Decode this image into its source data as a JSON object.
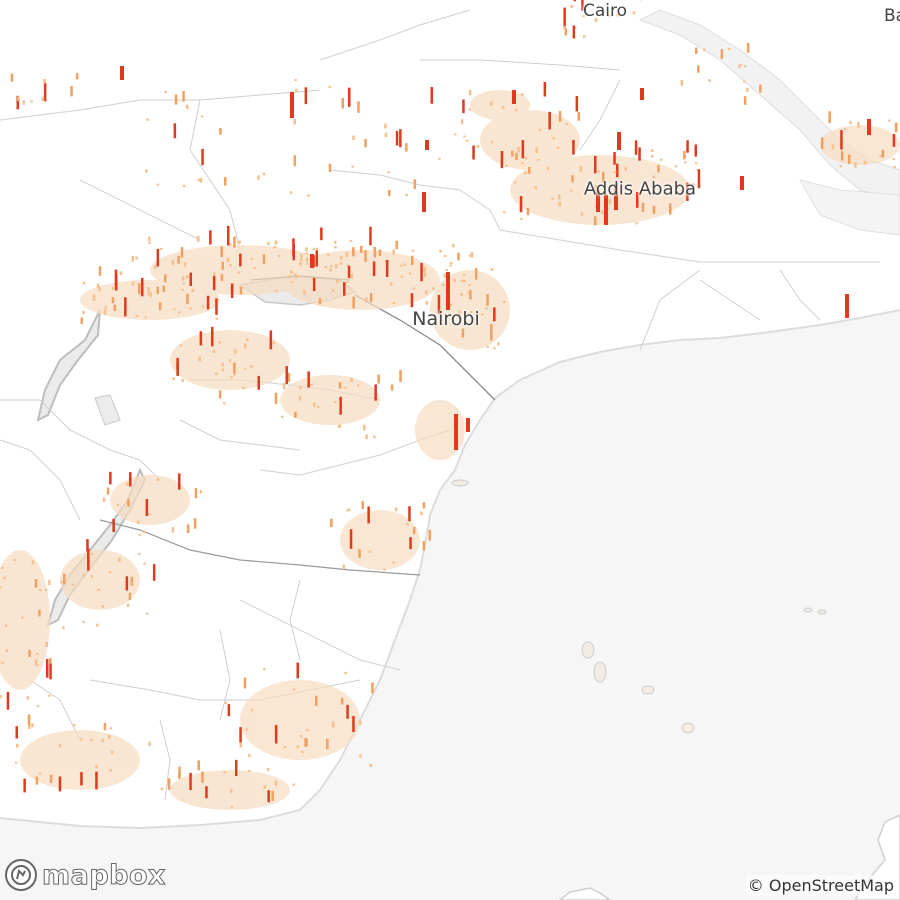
{
  "map": {
    "cities": {
      "cairo": "Cairo",
      "addis": "Addis Ababa",
      "nairobi": "Nairobi",
      "ba": "Ba"
    },
    "logo_text": "mapbox",
    "attribution": "© OpenStreetMap",
    "colors": {
      "background": "#ffffff",
      "ocean": "#f5f5f5",
      "lake": "#eeeeee",
      "border": "#c8c8c8",
      "density_low": "#f6dcc0",
      "density_mid": "#f0a060",
      "density_high": "#e03a1e"
    }
  }
}
